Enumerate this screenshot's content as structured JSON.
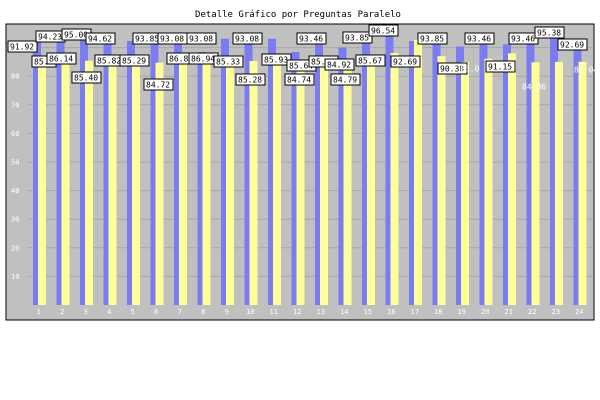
{
  "chart_data": {
    "type": "bar",
    "title": "Detalle Gráfico por Preguntas Paralelo",
    "categories": [
      "1",
      "2",
      "3",
      "4",
      "5",
      "6",
      "7",
      "8",
      "9",
      "10",
      "11",
      "12",
      "13",
      "14",
      "15",
      "16",
      "17",
      "18",
      "19",
      "20",
      "21",
      "22",
      "23",
      "24"
    ],
    "ylim": [
      0,
      100
    ],
    "yticks": [
      10,
      20,
      30,
      40,
      50,
      60,
      70,
      80,
      90
    ],
    "grid": true,
    "legend": "none",
    "series": [
      {
        "color": "#7b7bf2",
        "values": [
          91.92,
          94.23,
          95.0,
          94.62,
          92.31,
          93.85,
          93.08,
          88.46,
          93.08,
          92.31,
          93.08,
          88.46,
          93.46,
          90.0,
          93.85,
          96.54,
          92.31,
          93.85,
          90.38,
          93.46,
          91.15,
          93.46,
          95.38,
          92.69
        ]
      },
      {
        "color": "#ffff99",
        "values": [
          85.1,
          86.14,
          85.4,
          85.82,
          85.29,
          84.72,
          86.84,
          86.94,
          85.33,
          85.28,
          85.93,
          85.64,
          85.83,
          84.92,
          85.67,
          88.1,
          92.69,
          87.0,
          85.0,
          86.1,
          88.0,
          84.86,
          85.0,
          85.04
        ]
      }
    ],
    "data_labels": [
      {
        "text": "91.92",
        "boxed": true
      },
      {
        "text": "94.23",
        "boxed": true
      },
      {
        "text": "95.00",
        "boxed": true
      },
      {
        "text": "94.62",
        "boxed": true
      },
      {
        "text": "93.85",
        "boxed": true
      },
      {
        "text": "93.08",
        "boxed": true
      },
      {
        "text": "93.08",
        "boxed": true
      },
      {
        "text": "93.08",
        "boxed": true
      },
      {
        "text": "93.46",
        "boxed": true
      },
      {
        "text": "93.85",
        "boxed": true
      },
      {
        "text": "96.54",
        "boxed": true
      },
      {
        "text": "93.85",
        "boxed": true
      },
      {
        "text": "93.46",
        "boxed": true
      },
      {
        "text": "93.46",
        "boxed": true
      },
      {
        "text": "95.38",
        "boxed": true
      },
      {
        "text": "92.69",
        "boxed": true
      },
      {
        "text": "85.1",
        "boxed": true
      },
      {
        "text": "86.14",
        "boxed": true
      },
      {
        "text": "85.40",
        "boxed": true
      },
      {
        "text": "85.82",
        "boxed": true
      },
      {
        "text": "85.29",
        "boxed": true
      },
      {
        "text": "84.72",
        "boxed": true
      },
      {
        "text": "86.84",
        "boxed": true
      },
      {
        "text": "86.94",
        "boxed": true
      },
      {
        "text": "85.33",
        "boxed": true
      },
      {
        "text": "85.28",
        "boxed": true
      },
      {
        "text": "85.93",
        "boxed": true
      },
      {
        "text": "84.74",
        "boxed": true
      },
      {
        "text": "85.64",
        "boxed": true
      },
      {
        "text": "85.83",
        "boxed": true
      },
      {
        "text": "84.92",
        "boxed": true
      },
      {
        "text": "84.79",
        "boxed": true
      },
      {
        "text": "85.67",
        "boxed": true
      },
      {
        "text": "92.69",
        "boxed": true
      },
      {
        "text": "90.38",
        "boxed": true
      },
      {
        "text": "91.15",
        "boxed": true
      },
      {
        "text": "85.0",
        "boxed": false
      },
      {
        "text": "84.86",
        "boxed": false
      },
      {
        "text": "85.04",
        "boxed": false
      }
    ]
  }
}
